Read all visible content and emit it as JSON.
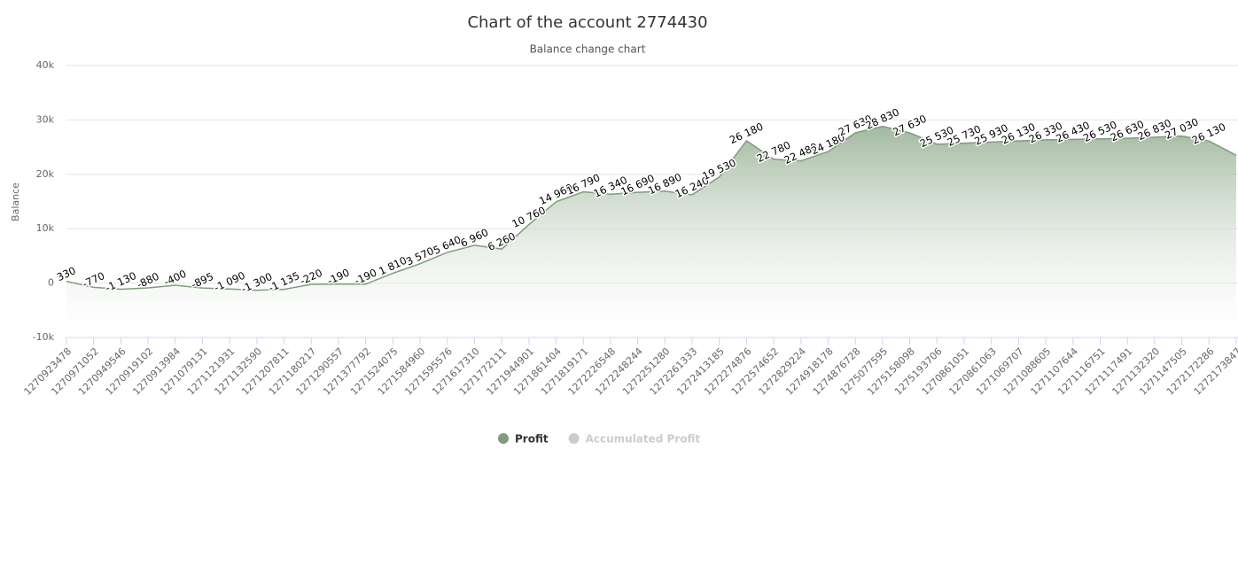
{
  "chart_data": {
    "type": "area",
    "title": "Chart of the account 2774430",
    "subtitle": "Balance change chart",
    "y_label": "Balance",
    "categories": [
      "1270923478",
      "1270971052",
      "1270949546",
      "1270919102",
      "1270913984",
      "1271079131",
      "1271121931",
      "1271132590",
      "1271207811",
      "1271180217",
      "1271290557",
      "1271377792",
      "1271524075",
      "1271584960",
      "1271595576",
      "1271617310",
      "1271772111",
      "1271944901",
      "1271861404",
      "1271819171",
      "1272226548",
      "1272248244",
      "1272251280",
      "1272261333",
      "1272413185",
      "1272274876",
      "1272574652",
      "1272829224",
      "1274918178",
      "1274876728",
      "1275077595",
      "1275158098",
      "1275193706",
      "1270861051",
      "1270861063",
      "1271069707",
      "1271088605",
      "1271107644",
      "1271116751",
      "1271117491",
      "1271132320",
      "1271147505",
      "1272172286",
      "1272173847"
    ],
    "series": [
      {
        "name": "Profit",
        "color": "#7f9c7c",
        "values": [
          330,
          -770,
          -1130,
          -880,
          -400,
          -895,
          -1090,
          -1300,
          -1135,
          -220,
          -190,
          -190,
          1810,
          3570,
          5640,
          6960,
          6260,
          10760,
          14960,
          16790,
          16340,
          16690,
          16890,
          16240,
          19530,
          26180,
          22780,
          22480,
          24180,
          27630,
          28830,
          27630,
          25530,
          25730,
          25930,
          26130,
          26330,
          26430,
          26530,
          26630,
          26830,
          27030,
          26130,
          23500
        ],
        "value_labels": [
          "330",
          "-770",
          "-1 130",
          "-880",
          "-400",
          "-895",
          "-1 090",
          "-1 300",
          "-1 135",
          "-220",
          "-190",
          "-190",
          "1 810",
          "3 570",
          "5 640",
          "6 960",
          "6 260",
          "10 760",
          "14 960",
          "16 790",
          "16 340",
          "16 690",
          "16 890",
          "16 240",
          "19 530",
          "26 180",
          "22 780",
          "22 480",
          "24 180",
          "27 630",
          "28 830",
          "27 630",
          "25 530",
          "25 730",
          "25 930",
          "26 130",
          "26 330",
          "26 430",
          "26 530",
          "26 630",
          "26 830",
          "27 030",
          "26 130",
          null
        ]
      },
      {
        "name": "Accumulated Profit",
        "color": "#cccccc",
        "hidden": true
      }
    ],
    "ylim": [
      -10000,
      40000
    ],
    "yticks": [
      {
        "value": -10000,
        "label": "-10k"
      },
      0,
      {
        "value": 10000,
        "label": "10k"
      },
      {
        "value": 20000,
        "label": "20k"
      },
      {
        "value": 30000,
        "label": "30k"
      },
      {
        "value": 40000,
        "label": "40k"
      }
    ],
    "grid": true
  }
}
